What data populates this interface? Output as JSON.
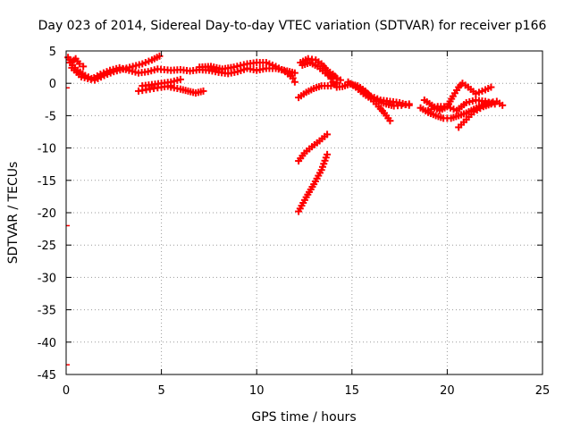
{
  "chart_data": {
    "type": "scatter",
    "title": "Day 023 of 2014, Sidereal Day-to-day VTEC variation (SDTVAR) for receiver p166",
    "xlabel": "GPS time / hours",
    "ylabel": "SDTVAR / TECUs",
    "xlim": [
      0,
      25
    ],
    "ylim": [
      -45,
      5
    ],
    "xticks": [
      0,
      5,
      10,
      15,
      20,
      25
    ],
    "yticks": [
      5,
      0,
      -5,
      -10,
      -15,
      -20,
      -25,
      -30,
      -35,
      -40,
      -45
    ],
    "grid": true,
    "marker_color": "#ff0000",
    "series": [
      {
        "segments": [
          [
            [
              0.2,
              3.2
            ],
            [
              0.6,
              2.0
            ],
            [
              1.0,
              1.2
            ],
            [
              1.5,
              0.5
            ],
            [
              2.0,
              1.2
            ],
            [
              2.5,
              1.8
            ],
            [
              3.0,
              2.2
            ],
            [
              3.5,
              2.6
            ],
            [
              4.0,
              3.0
            ],
            [
              4.5,
              3.6
            ],
            [
              4.9,
              4.2
            ]
          ],
          [
            [
              0.3,
              2.4
            ],
            [
              0.8,
              1.0
            ],
            [
              1.3,
              0.6
            ],
            [
              1.8,
              1.4
            ],
            [
              2.3,
              2.0
            ],
            [
              2.8,
              2.4
            ],
            [
              3.3,
              2.0
            ],
            [
              3.8,
              1.6
            ],
            [
              4.3,
              1.8
            ],
            [
              4.8,
              2.2
            ],
            [
              5.5,
              2.0
            ],
            [
              6.0,
              2.1
            ],
            [
              6.5,
              1.9
            ],
            [
              7.0,
              2.1
            ],
            [
              7.5,
              2.0
            ],
            [
              8.0,
              1.7
            ],
            [
              8.5,
              1.5
            ],
            [
              9.0,
              1.8
            ],
            [
              9.5,
              2.3
            ],
            [
              10.0,
              2.0
            ],
            [
              10.5,
              2.3
            ],
            [
              11.0,
              2.3
            ],
            [
              11.6,
              1.9
            ],
            [
              12.0,
              1.6
            ]
          ],
          [
            [
              0.1,
              4.0
            ],
            [
              0.3,
              3.3
            ],
            [
              0.5,
              3.8
            ],
            [
              0.7,
              3.0
            ],
            [
              0.9,
              2.6
            ]
          ],
          [
            [
              4.0,
              -0.4
            ],
            [
              4.5,
              -0.2
            ],
            [
              5.0,
              0.0
            ],
            [
              5.5,
              0.2
            ],
            [
              6.0,
              0.6
            ]
          ],
          [
            [
              3.8,
              -1.2
            ],
            [
              4.2,
              -1.0
            ],
            [
              4.6,
              -0.8
            ],
            [
              5.0,
              -0.6
            ],
            [
              5.5,
              -0.4
            ]
          ],
          [
            [
              5.5,
              -0.6
            ],
            [
              6.0,
              -0.9
            ],
            [
              6.4,
              -1.2
            ],
            [
              6.8,
              -1.5
            ],
            [
              7.2,
              -1.2
            ]
          ],
          [
            [
              7.0,
              2.5
            ],
            [
              7.6,
              2.6
            ],
            [
              8.2,
              2.2
            ],
            [
              8.8,
              2.5
            ],
            [
              9.5,
              3.0
            ],
            [
              10.0,
              3.2
            ],
            [
              10.5,
              3.2
            ],
            [
              11.0,
              2.6
            ],
            [
              11.5,
              1.8
            ],
            [
              11.9,
              0.8
            ],
            [
              12.0,
              0.2
            ]
          ],
          [
            [
              12.3,
              3.2
            ],
            [
              12.7,
              3.8
            ],
            [
              13.1,
              3.6
            ],
            [
              13.4,
              3.0
            ],
            [
              13.7,
              2.0
            ],
            [
              14.0,
              1.4
            ],
            [
              14.2,
              0.8
            ],
            [
              14.4,
              0.5
            ]
          ],
          [
            [
              12.4,
              2.8
            ],
            [
              12.8,
              3.2
            ],
            [
              13.2,
              2.6
            ],
            [
              13.6,
              1.6
            ],
            [
              14.0,
              1.0
            ]
          ],
          [
            [
              12.2,
              -2.2
            ],
            [
              12.6,
              -1.4
            ],
            [
              13.0,
              -0.8
            ],
            [
              13.4,
              -0.4
            ],
            [
              13.9,
              -0.4
            ],
            [
              14.2,
              0.1
            ]
          ],
          [
            [
              13.8,
              1.2
            ],
            [
              14.0,
              0.2
            ],
            [
              14.2,
              -0.6
            ],
            [
              14.5,
              -0.5
            ],
            [
              14.9,
              -0.1
            ],
            [
              15.3,
              -0.4
            ],
            [
              15.7,
              -1.2
            ],
            [
              16.0,
              -2.2
            ],
            [
              16.4,
              -2.8
            ],
            [
              16.8,
              -3.2
            ],
            [
              17.2,
              -3.5
            ],
            [
              17.6,
              -3.4
            ],
            [
              18.0,
              -3.2
            ]
          ],
          [
            [
              14.8,
              0.2
            ],
            [
              15.2,
              -0.6
            ],
            [
              15.6,
              -1.6
            ],
            [
              16.0,
              -2.4
            ],
            [
              16.4,
              -3.6
            ],
            [
              16.7,
              -4.6
            ],
            [
              17.0,
              -5.8
            ]
          ],
          [
            [
              15.5,
              -1.0
            ],
            [
              16.0,
              -2.0
            ],
            [
              16.5,
              -2.6
            ],
            [
              17.0,
              -2.8
            ],
            [
              17.5,
              -3.0
            ],
            [
              18.0,
              -3.4
            ]
          ],
          [
            [
              18.8,
              -2.6
            ],
            [
              19.2,
              -3.4
            ],
            [
              19.6,
              -4.2
            ],
            [
              20.0,
              -3.6
            ],
            [
              20.3,
              -2.0
            ],
            [
              20.6,
              -0.6
            ],
            [
              20.8,
              0.0
            ],
            [
              21.1,
              -0.6
            ],
            [
              21.5,
              -1.6
            ],
            [
              22.0,
              -1.0
            ],
            [
              22.3,
              -0.6
            ]
          ],
          [
            [
              18.6,
              -3.8
            ],
            [
              19.0,
              -4.5
            ],
            [
              19.4,
              -5.0
            ],
            [
              19.8,
              -5.4
            ],
            [
              20.2,
              -5.4
            ],
            [
              20.6,
              -5.0
            ],
            [
              21.0,
              -4.6
            ],
            [
              21.4,
              -4.0
            ],
            [
              21.8,
              -3.4
            ],
            [
              22.2,
              -3.0
            ],
            [
              22.6,
              -2.8
            ],
            [
              22.9,
              -3.4
            ]
          ],
          [
            [
              19.0,
              -4.2
            ],
            [
              19.5,
              -3.6
            ],
            [
              20.0,
              -3.6
            ],
            [
              20.5,
              -4.2
            ],
            [
              21.0,
              -3.0
            ],
            [
              21.5,
              -2.6
            ],
            [
              22.0,
              -2.8
            ],
            [
              22.5,
              -3.2
            ]
          ],
          [
            [
              20.6,
              -6.8
            ],
            [
              21.0,
              -5.6
            ],
            [
              21.4,
              -4.4
            ],
            [
              21.9,
              -3.6
            ],
            [
              22.3,
              -3.2
            ]
          ],
          [
            [
              12.2,
              -12.0
            ],
            [
              12.5,
              -10.8
            ],
            [
              12.9,
              -9.8
            ],
            [
              13.3,
              -8.9
            ],
            [
              13.7,
              -7.9
            ]
          ],
          [
            [
              12.2,
              -19.8
            ],
            [
              12.6,
              -17.6
            ],
            [
              13.0,
              -15.6
            ],
            [
              13.4,
              -13.4
            ],
            [
              13.7,
              -11.0
            ]
          ]
        ]
      }
    ],
    "left_edge_marks_y": [
      -0.7,
      -22,
      -43.5
    ]
  }
}
